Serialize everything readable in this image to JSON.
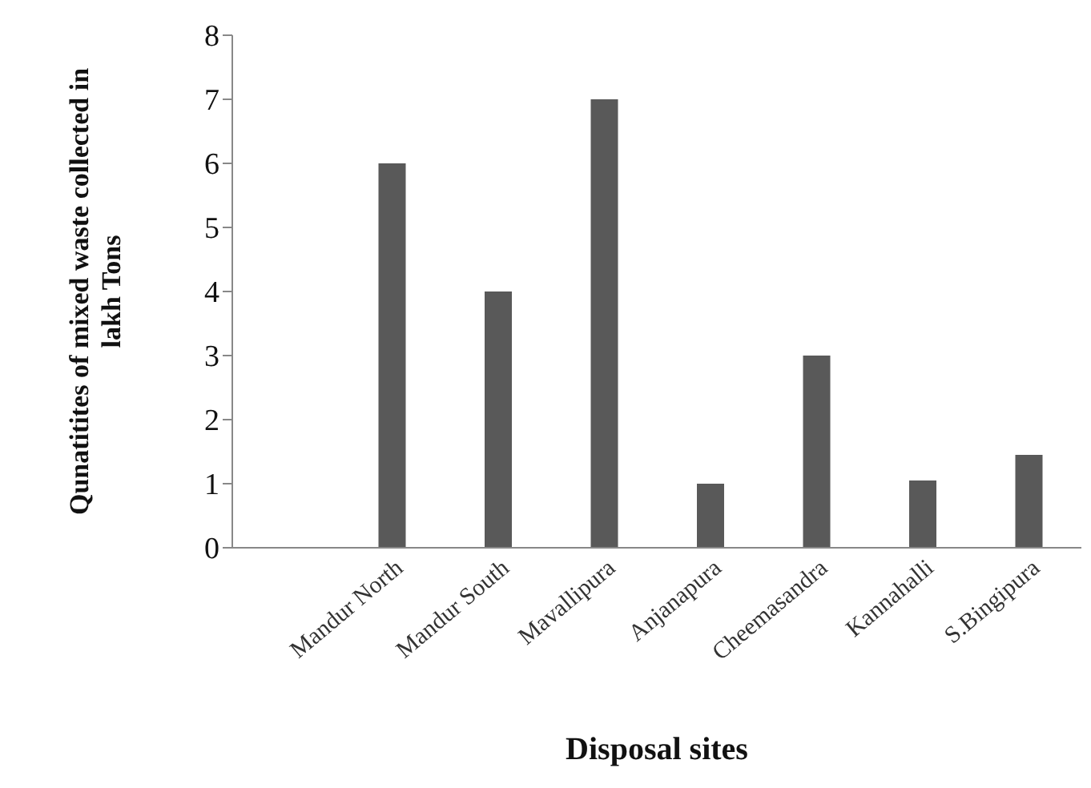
{
  "chart_data": {
    "type": "bar",
    "xlabel": "Disposal sites",
    "ylabel": "Qunatitites of mixed waste collected in lakh Tons",
    "categories": [
      null,
      "Mandur North",
      "Mandur South",
      "Mavallipura",
      "Anjanapura",
      "Cheemasandra",
      "Kannahalli",
      "S.Bingipura"
    ],
    "values": [
      null,
      6,
      4,
      7,
      1,
      3,
      1.05,
      1.45
    ],
    "color": "#595959",
    "ylim": [
      0,
      8
    ],
    "yticks": [
      0,
      1,
      2,
      3,
      4,
      5,
      6,
      7,
      8
    ],
    "grid": false,
    "legend": false
  }
}
